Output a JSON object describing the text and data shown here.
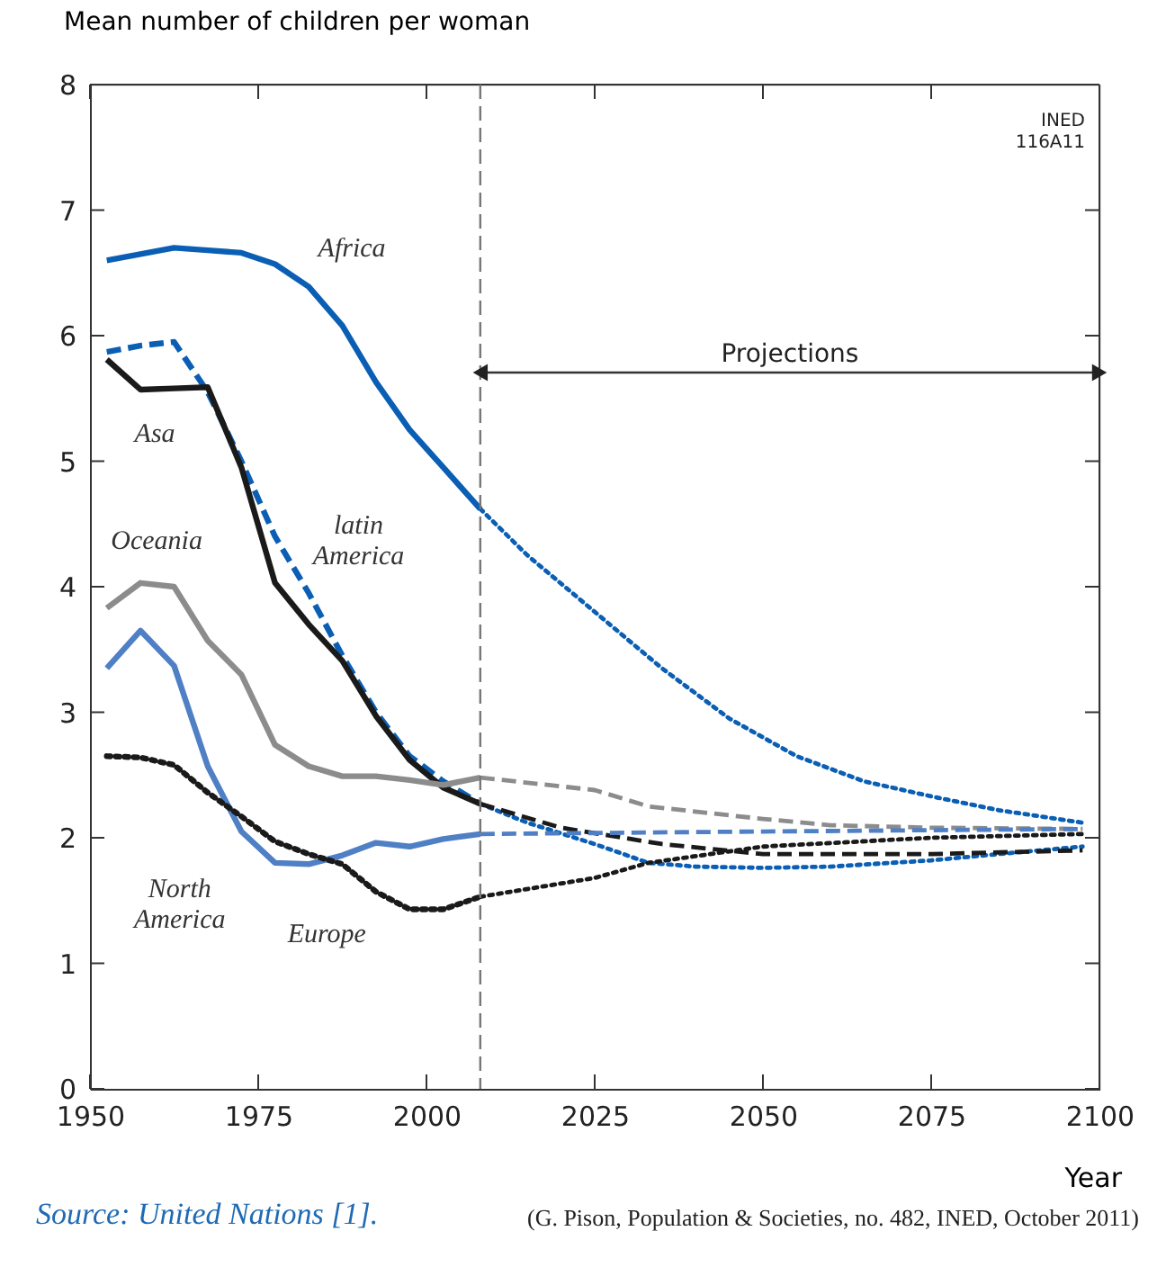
{
  "chart_data": {
    "type": "line",
    "xlabel": "Year",
    "ylabel": "Mean number of children per woman",
    "xlim": [
      1950,
      2100
    ],
    "xticks": [
      1950,
      1975,
      2000,
      2025,
      2050,
      2075,
      2100
    ],
    "ylim": [
      0,
      8
    ],
    "yticks": [
      0,
      1,
      2,
      3,
      4,
      5,
      6,
      7,
      8
    ],
    "grid": false,
    "marker": "none",
    "series": [
      {
        "name": "Africa",
        "color": "#0a5fb4",
        "line_style": "solid",
        "x": [
          1952.5,
          1957.5,
          1962.5,
          1967.5,
          1972.5,
          1977.5,
          1982.5,
          1987.5,
          1992.5,
          1997.5,
          2002.5,
          2008
        ],
        "values": [
          6.6,
          6.65,
          6.7,
          6.68,
          6.66,
          6.57,
          6.39,
          6.08,
          5.63,
          5.25,
          4.95,
          4.62
        ]
      },
      {
        "color": "#0a5fb4",
        "line_style": "dotted",
        "x": [
          2008,
          2015,
          2025,
          2035,
          2045,
          2055,
          2065,
          2075,
          2085,
          2097.5
        ],
        "values": [
          4.62,
          4.25,
          3.8,
          3.35,
          2.95,
          2.65,
          2.45,
          2.33,
          2.22,
          2.12
        ]
      },
      {
        "name": "latin America",
        "color": "#0a5fb4",
        "line_style": "dashed",
        "x": [
          1952.5,
          1957.5,
          1962.5,
          1967.5,
          1972.5,
          1977.5,
          1982.5,
          1987.5,
          1992.5,
          1997.5,
          2002.5,
          2008
        ],
        "values": [
          5.87,
          5.92,
          5.95,
          5.55,
          5.0,
          4.4,
          3.95,
          3.45,
          3.0,
          2.65,
          2.45,
          2.27
        ]
      },
      {
        "color": "#0a5fb4",
        "line_style": "dotted",
        "x": [
          2008,
          2015,
          2025,
          2033,
          2040,
          2050,
          2060,
          2075,
          2085,
          2097.5
        ],
        "values": [
          2.27,
          2.12,
          1.95,
          1.8,
          1.77,
          1.76,
          1.77,
          1.82,
          1.87,
          1.93
        ]
      },
      {
        "name": "Asa",
        "color": "#1a1a1a",
        "line_style": "solid",
        "x": [
          1952.5,
          1957.5,
          1962.5,
          1967.5,
          1972.5,
          1977.5,
          1982.5,
          1987.5,
          1992.5,
          1997.5,
          2002.5,
          2008
        ],
        "values": [
          5.81,
          5.57,
          5.58,
          5.59,
          4.95,
          4.03,
          3.7,
          3.41,
          2.97,
          2.62,
          2.4,
          2.27
        ]
      },
      {
        "color": "#1a1a1a",
        "line_style": "dashed",
        "x": [
          2008,
          2020,
          2035,
          2050,
          2075,
          2097.5
        ],
        "values": [
          2.27,
          2.08,
          1.95,
          1.87,
          1.87,
          1.9
        ]
      },
      {
        "name": "Oceania",
        "color": "#8c8c8c",
        "line_style": "solid",
        "x": [
          1952.5,
          1957.5,
          1962.5,
          1967.5,
          1972.5,
          1977.5,
          1982.5,
          1987.5,
          1992.5,
          1997.5,
          2002.5,
          2008
        ],
        "values": [
          3.83,
          4.03,
          4.0,
          3.57,
          3.3,
          2.74,
          2.57,
          2.49,
          2.49,
          2.46,
          2.42,
          2.48
        ]
      },
      {
        "color": "#8c8c8c",
        "line_style": "dashed",
        "x": [
          2008,
          2025,
          2033,
          2050,
          2060,
          2075,
          2097.5
        ],
        "values": [
          2.48,
          2.38,
          2.25,
          2.15,
          2.1,
          2.08,
          2.07
        ]
      },
      {
        "name": "North America",
        "color": "#4f7fc4",
        "line_style": "solid",
        "x": [
          1952.5,
          1957.5,
          1962.5,
          1967.5,
          1972.5,
          1977.5,
          1982.5,
          1987.5,
          1992.5,
          1997.5,
          2002.5,
          2008
        ],
        "values": [
          3.35,
          3.65,
          3.37,
          2.57,
          2.05,
          1.8,
          1.79,
          1.86,
          1.96,
          1.93,
          1.99,
          2.03
        ]
      },
      {
        "color": "#4f7fc4",
        "line_style": "dashed",
        "x": [
          2008,
          2050,
          2097.5
        ],
        "values": [
          2.03,
          2.05,
          2.07
        ]
      },
      {
        "name": "Europe",
        "color": "#1a1a1a",
        "line_style": "dotted",
        "x": [
          1952.5,
          1957.5,
          1962.5,
          1967.5,
          1972.5,
          1977.5,
          1982.5,
          1987.5,
          1992.5,
          1997.5,
          2002.5,
          2008
        ],
        "values": [
          2.65,
          2.64,
          2.58,
          2.36,
          2.17,
          1.97,
          1.87,
          1.79,
          1.57,
          1.43,
          1.43,
          1.53
        ]
      },
      {
        "color": "#1a1a1a",
        "line_style": "dotted",
        "x": [
          2008,
          2025,
          2033,
          2050,
          2075,
          2097.5
        ],
        "values": [
          1.53,
          1.68,
          1.8,
          1.93,
          2.0,
          2.03
        ]
      }
    ],
    "ref_lines": [
      {
        "axis": "x",
        "value": 2008,
        "color": "#777777",
        "line_style": "dashed"
      }
    ],
    "annotations": [
      "Projections",
      "INED 116A11",
      "Source: United Nations [1].",
      "(G. Pison, Population & Societies, no. 482, INED, October 2011)"
    ]
  }
}
